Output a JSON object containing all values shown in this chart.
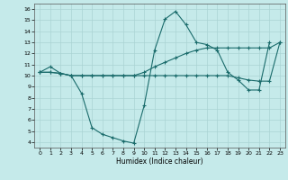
{
  "xlabel": "Humidex (Indice chaleur)",
  "background_color": "#c5eaea",
  "grid_color": "#aad4d4",
  "line_color": "#1a6b6b",
  "x_ticks": [
    0,
    1,
    2,
    3,
    4,
    5,
    6,
    7,
    8,
    9,
    10,
    11,
    12,
    13,
    14,
    15,
    16,
    17,
    18,
    19,
    20,
    21,
    22,
    23
  ],
  "y_ticks": [
    4,
    5,
    6,
    7,
    8,
    9,
    10,
    11,
    12,
    13,
    14,
    15,
    16
  ],
  "xlim": [
    -0.5,
    23.5
  ],
  "ylim": [
    3.5,
    16.5
  ],
  "line1_x": [
    0,
    1,
    2,
    3,
    4,
    5,
    6,
    7,
    8,
    9,
    10,
    11,
    12,
    13,
    14,
    15,
    16,
    17,
    18,
    19,
    20,
    21,
    22
  ],
  "line1_y": [
    10.3,
    10.8,
    10.2,
    10.0,
    8.4,
    5.3,
    4.7,
    4.4,
    4.1,
    3.9,
    7.3,
    12.3,
    15.1,
    15.8,
    14.6,
    13.0,
    12.8,
    12.3,
    10.3,
    9.6,
    8.7,
    8.7,
    13.0
  ],
  "line2_x": [
    0,
    1,
    2,
    3,
    4,
    5,
    6,
    7,
    8,
    9,
    10,
    11,
    12,
    13,
    14,
    15,
    16,
    17,
    18,
    19,
    20,
    21,
    22,
    23
  ],
  "line2_y": [
    10.3,
    10.3,
    10.2,
    10.0,
    10.0,
    10.0,
    10.0,
    10.0,
    10.0,
    10.0,
    10.3,
    10.8,
    11.2,
    11.6,
    12.0,
    12.3,
    12.5,
    12.5,
    12.5,
    12.5,
    12.5,
    12.5,
    12.5,
    13.0
  ],
  "line3_x": [
    0,
    1,
    2,
    3,
    4,
    5,
    6,
    7,
    8,
    9,
    10,
    11,
    12,
    13,
    14,
    15,
    16,
    17,
    18,
    19,
    20,
    21,
    22,
    23
  ],
  "line3_y": [
    10.3,
    10.3,
    10.2,
    10.0,
    10.0,
    10.0,
    10.0,
    10.0,
    10.0,
    10.0,
    10.0,
    10.0,
    10.0,
    10.0,
    10.0,
    10.0,
    10.0,
    10.0,
    10.0,
    9.8,
    9.6,
    9.5,
    9.5,
    13.0
  ]
}
